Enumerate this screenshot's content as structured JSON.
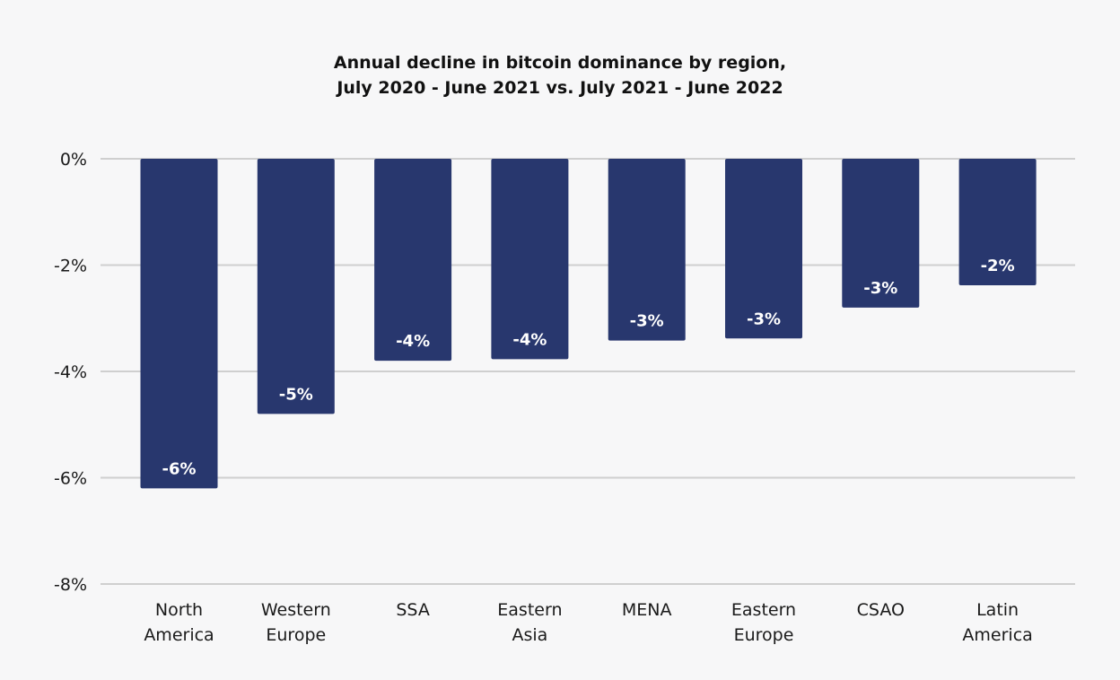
{
  "chart_data": {
    "type": "bar",
    "title_lines": [
      "Annual decline in bitcoin dominance by region,",
      "July 2020 - June 2021 vs. July 2021 - June 2022"
    ],
    "categories": [
      [
        "North",
        "America"
      ],
      [
        "Western",
        "Europe"
      ],
      [
        "SSA"
      ],
      [
        "Eastern",
        "Asia"
      ],
      [
        "MENA"
      ],
      [
        "Eastern",
        "Europe"
      ],
      [
        "CSAO"
      ],
      [
        "Latin",
        "America"
      ]
    ],
    "values": [
      -6.2,
      -4.8,
      -3.8,
      -3.77,
      -3.42,
      -3.38,
      -2.8,
      -2.38
    ],
    "data_labels": [
      "-6%",
      "-5%",
      "-4%",
      "-4%",
      "-3%",
      "-3%",
      "-3%",
      "-2%"
    ],
    "ylim": [
      -8,
      0
    ],
    "yticks": [
      0,
      -2,
      -4,
      -6,
      -8
    ],
    "ytick_labels": [
      "0%",
      "-2%",
      "-4%",
      "-6%",
      "-8%"
    ],
    "xlabel": "",
    "ylabel": "",
    "grid": true,
    "legend": "none",
    "colors": {
      "bar": "#28376e",
      "grid": "#cfcfcf",
      "background": "#f7f7f8",
      "label": "#ffffff"
    }
  }
}
